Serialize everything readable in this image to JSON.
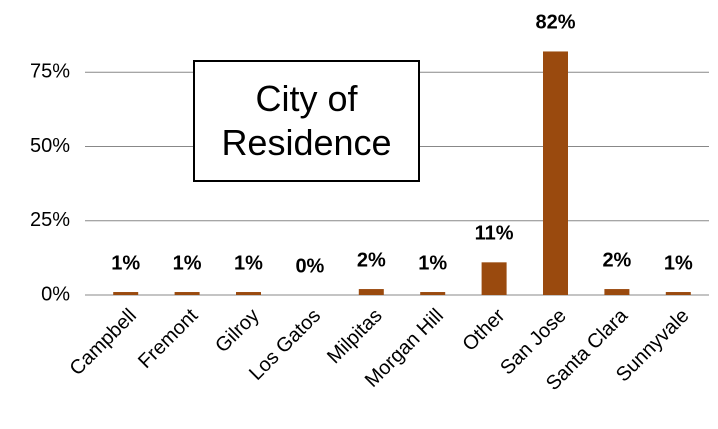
{
  "chart_data": {
    "type": "bar",
    "title": "City of Residence",
    "categories": [
      "Campbell",
      "Fremont",
      "Gilroy",
      "Los Gatos",
      "Milpitas",
      "Morgan Hill",
      "Other",
      "San Jose",
      "Santa Clara",
      "Sunnyvale"
    ],
    "values": [
      1,
      1,
      1,
      0,
      2,
      1,
      11,
      82,
      2,
      1
    ],
    "value_labels": [
      "1%",
      "1%",
      "1%",
      "0%",
      "2%",
      "1%",
      "11%",
      "82%",
      "2%",
      "1%"
    ],
    "color": "#9a4a0e",
    "ylim": [
      0,
      100
    ],
    "yticks": [
      {
        "value": 0,
        "label": "0%"
      },
      {
        "value": 25,
        "label": "25%"
      },
      {
        "value": 50,
        "label": "50%"
      },
      {
        "value": 75,
        "label": "75%"
      }
    ],
    "grid": true
  }
}
